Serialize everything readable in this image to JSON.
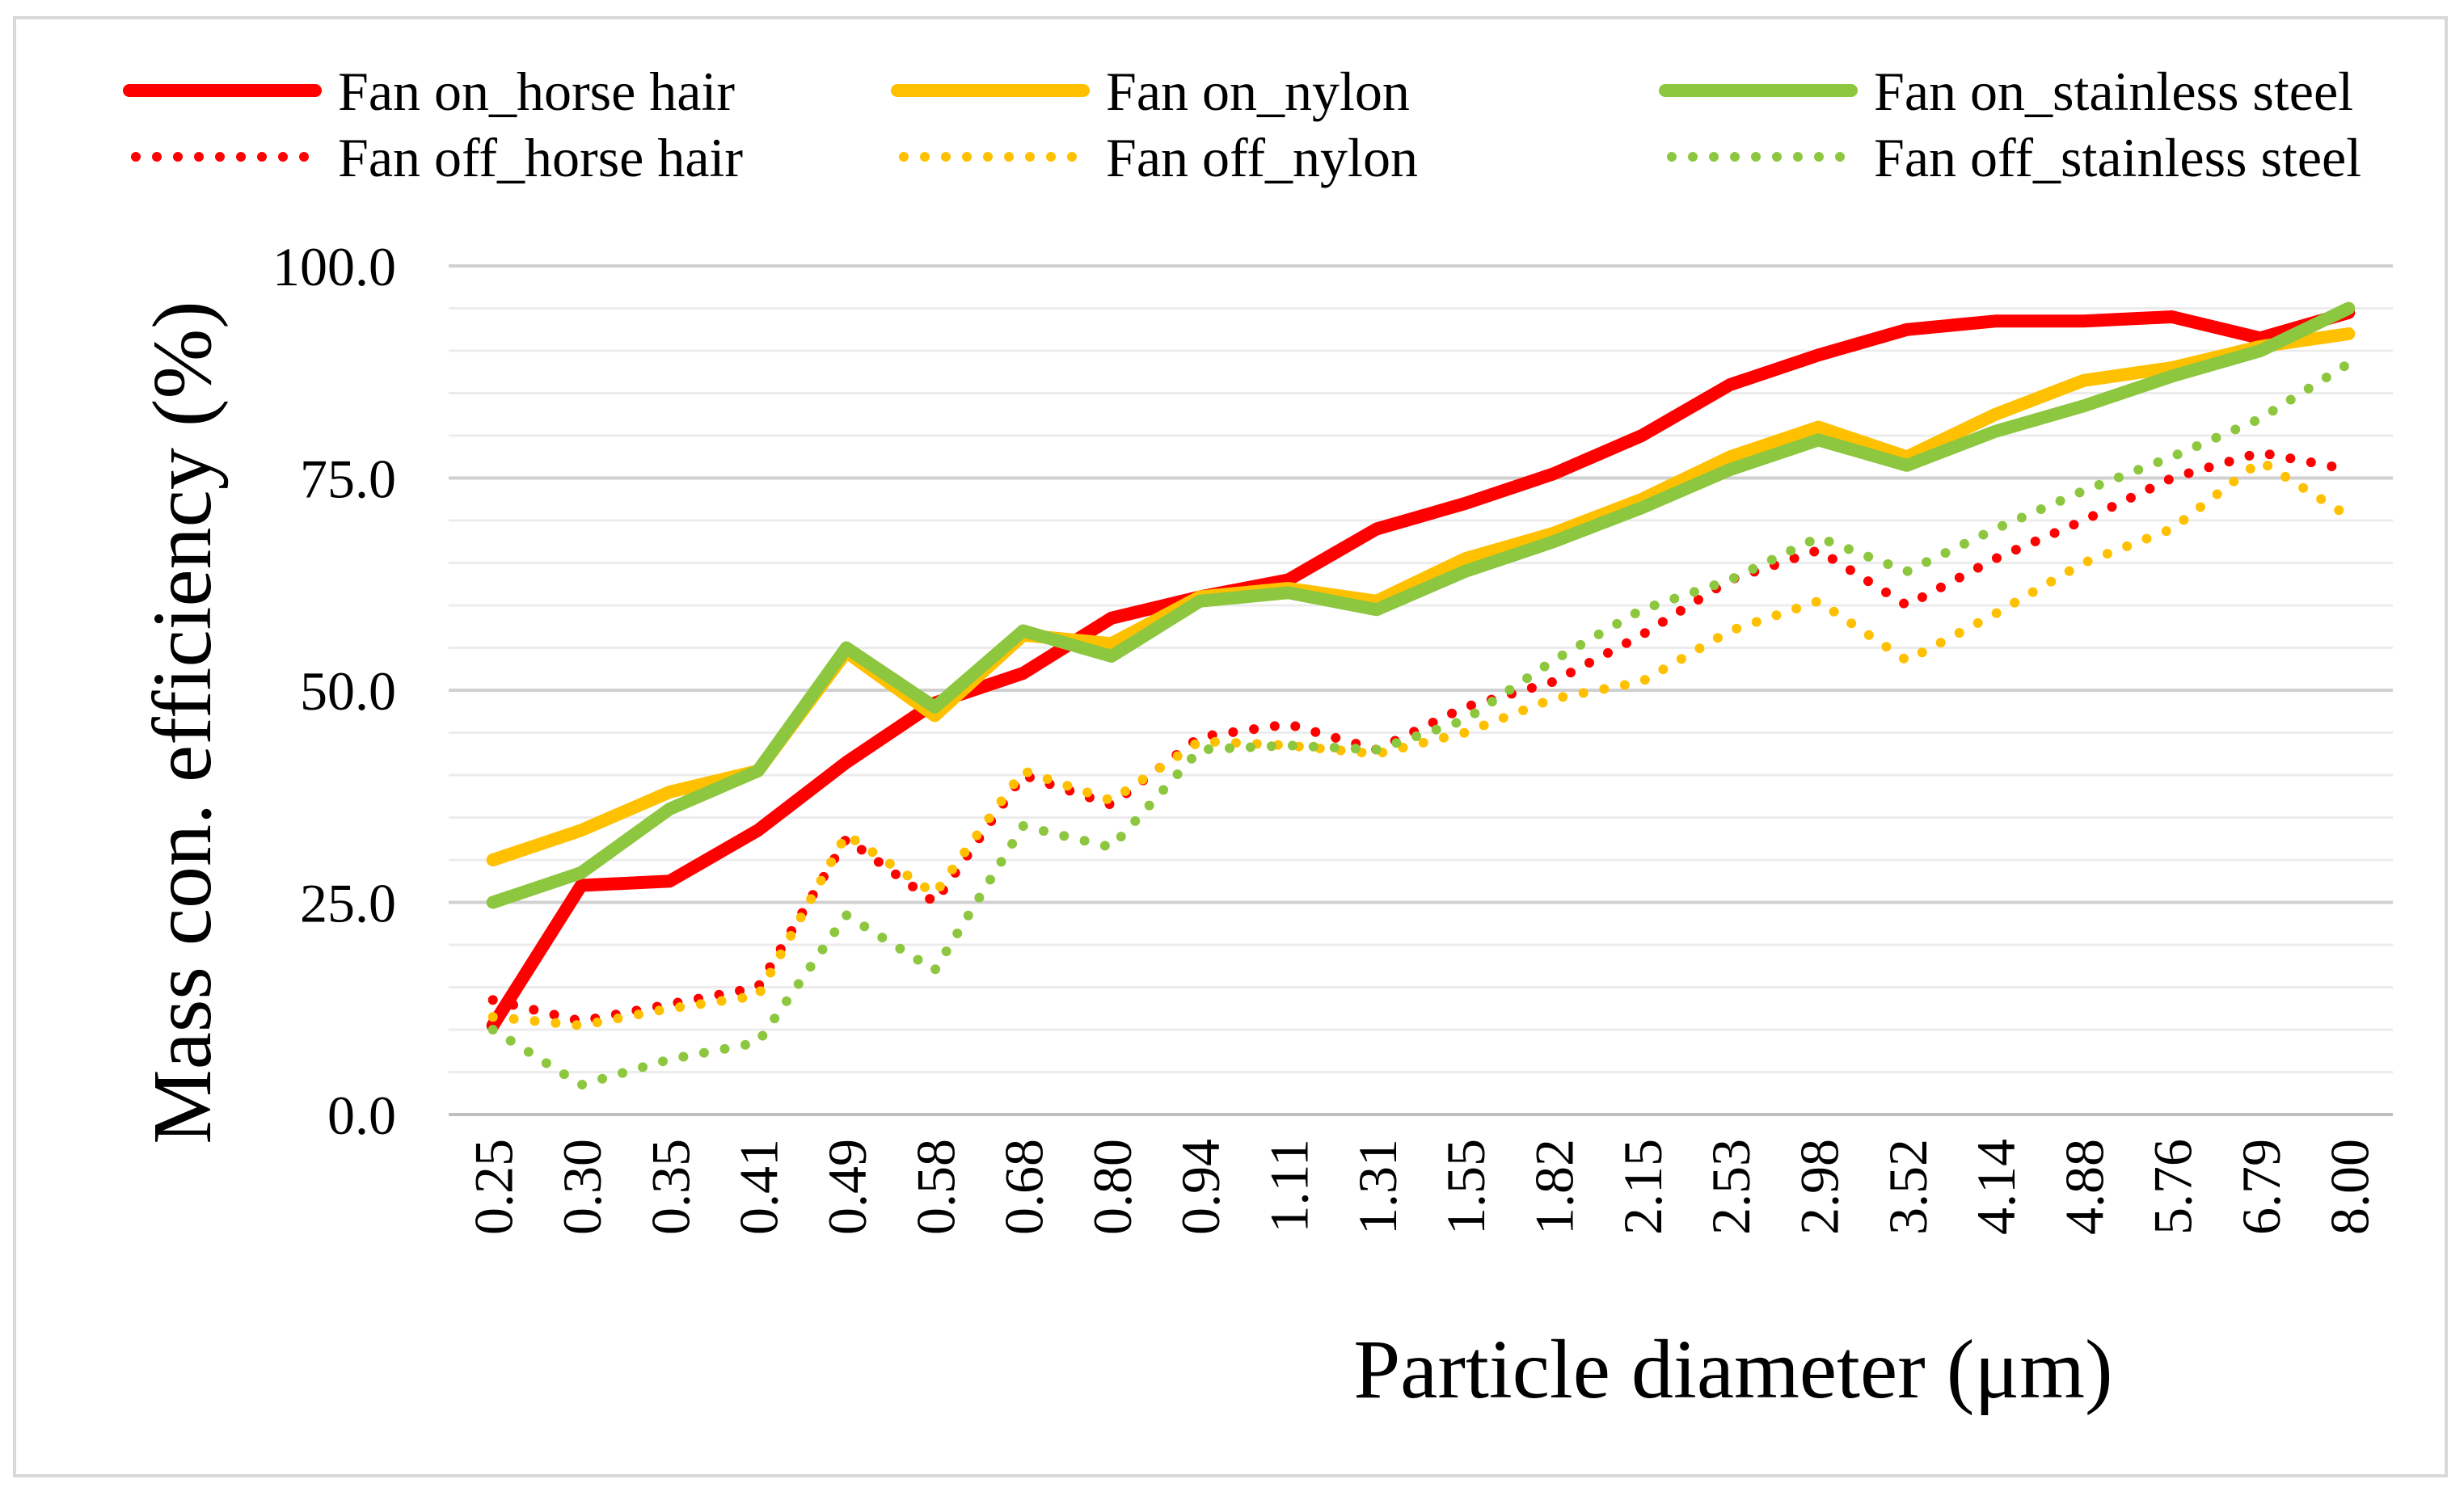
{
  "chart_data": {
    "type": "line",
    "title": "",
    "xlabel": "Particle diameter (μm)",
    "ylabel": "Mass con. efficiency (%)",
    "ylim": [
      0,
      100
    ],
    "yticks": [
      "0.0",
      "25.0",
      "50.0",
      "75.0",
      "100.0"
    ],
    "ytick_values": [
      0,
      25,
      50,
      75,
      100
    ],
    "minor_grid_step": 5,
    "grid": true,
    "legend_position": "top",
    "categories": [
      "0.25",
      "0.30",
      "0.35",
      "0.41",
      "0.49",
      "0.58",
      "0.68",
      "0.80",
      "0.94",
      "1.11",
      "1.31",
      "1.55",
      "1.82",
      "2.15",
      "2.53",
      "2.98",
      "3.52",
      "4.14",
      "4.88",
      "5.76",
      "6.79",
      "8.00"
    ],
    "series": [
      {
        "name": "Fan on_horse hair",
        "color": "#ff0000",
        "style": "solid",
        "values": [
          10.5,
          27.0,
          27.5,
          33.5,
          41.5,
          48.5,
          52.0,
          58.5,
          61.0,
          63.0,
          69.0,
          72.0,
          75.5,
          80.0,
          86.0,
          89.5,
          92.5,
          93.5,
          93.5,
          94.0,
          91.5,
          94.5
        ]
      },
      {
        "name": "Fan on_nylon",
        "color": "#ffc000",
        "style": "solid",
        "values": [
          30.0,
          33.5,
          38.0,
          40.5,
          54.5,
          47.0,
          56.5,
          55.5,
          61.0,
          62.0,
          60.5,
          65.5,
          68.5,
          72.5,
          77.5,
          81.0,
          77.5,
          82.5,
          86.5,
          88.0,
          90.5,
          92.0
        ]
      },
      {
        "name": "Fan on_stainless steel",
        "color": "#8dc63f",
        "style": "solid",
        "values": [
          25.0,
          28.5,
          36.0,
          40.5,
          55.0,
          48.0,
          57.0,
          54.0,
          60.5,
          61.5,
          59.5,
          64.0,
          67.5,
          71.5,
          76.0,
          79.5,
          76.5,
          80.5,
          83.5,
          87.0,
          90.0,
          95.0
        ]
      },
      {
        "name": "Fan off_horse hair",
        "color": "#ff0000",
        "style": "dotted",
        "values": [
          13.5,
          11.0,
          13.0,
          15.0,
          32.5,
          25.0,
          40.0,
          36.5,
          44.5,
          46.0,
          43.0,
          48.0,
          51.0,
          56.5,
          63.0,
          66.5,
          60.0,
          65.5,
          70.0,
          75.0,
          78.0,
          76.0
        ]
      },
      {
        "name": "Fan off_nylon",
        "color": "#ffc000",
        "style": "dotted",
        "values": [
          11.5,
          10.5,
          12.5,
          14.0,
          33.0,
          26.0,
          40.5,
          37.0,
          44.0,
          43.5,
          42.5,
          45.0,
          49.0,
          51.0,
          57.0,
          60.5,
          53.5,
          59.0,
          65.0,
          69.0,
          77.0,
          70.5
        ]
      },
      {
        "name": "Fan off_stainless steel",
        "color": "#8dc63f",
        "style": "dotted",
        "values": [
          10.0,
          3.5,
          6.5,
          8.5,
          23.5,
          17.0,
          34.0,
          31.5,
          43.0,
          43.5,
          43.0,
          46.5,
          53.5,
          59.5,
          63.0,
          68.0,
          64.0,
          69.0,
          73.5,
          77.5,
          82.0,
          88.5
        ]
      }
    ]
  }
}
